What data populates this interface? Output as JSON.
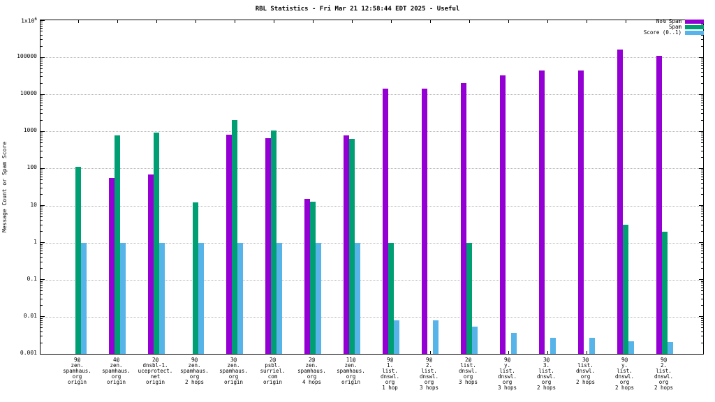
{
  "chart_data": {
    "type": "bar",
    "title": "RBL Statistics - Fri Mar 21 12:58:44 EDT 2025 - Useful",
    "ylabel": "Message Count or Spam Score",
    "xlabel": "",
    "y_scale": "log",
    "ylim": [
      0.001,
      1000000
    ],
    "y_tick_labels": [
      "1x10^6",
      "100000",
      "10000",
      "1000",
      "100",
      "10",
      "1",
      "0.1",
      "0.01",
      "0.001"
    ],
    "grid": true,
    "legend_position": "top-right",
    "categories": [
      [
        "9@",
        "zen.",
        "spamhaus.",
        "org",
        "origin"
      ],
      [
        "4@",
        "zen.",
        "spamhaus.",
        "org",
        "origin"
      ],
      [
        "2@",
        "dnsbl-1.",
        "uceprotect.",
        "net",
        "origin"
      ],
      [
        "9@",
        "zen.",
        "spamhaus.",
        "org",
        "2 hops"
      ],
      [
        "3@",
        "zen.",
        "spamhaus.",
        "org",
        "origin"
      ],
      [
        "2@",
        "psbl.",
        "surriel.",
        "com",
        "origin"
      ],
      [
        "2@",
        "zen.",
        "spamhaus.",
        "org",
        "4 hops"
      ],
      [
        "11@",
        "zen.",
        "spamhaus.",
        "org",
        "origin"
      ],
      [
        "9@",
        "1.",
        "list.",
        "dnswl.",
        "org",
        "1 hop"
      ],
      [
        "9@",
        "2.",
        "list.",
        "dnswl.",
        "org",
        "3 hops"
      ],
      [
        "2@",
        "list.",
        "dnswl.",
        "org",
        "3 hops"
      ],
      [
        "9@",
        "y.",
        "list.",
        "dnswl.",
        "org",
        "3 hops"
      ],
      [
        "3@",
        "3.",
        "list.",
        "dnswl.",
        "org",
        "2 hops"
      ],
      [
        "3@",
        "list.",
        "dnswl.",
        "org",
        "2 hops"
      ],
      [
        "9@",
        "y.",
        "list.",
        "dnswl.",
        "org",
        "2 hops"
      ],
      [
        "9@",
        "2.",
        "list.",
        "dnswl.",
        "org",
        "2 hops"
      ]
    ],
    "series": [
      {
        "name": "Not Spam",
        "color": "#9400d3",
        "values": [
          null,
          55,
          70,
          null,
          800,
          650,
          15,
          780,
          14000,
          14000,
          20000,
          33000,
          45000,
          44000,
          160000,
          110000
        ]
      },
      {
        "name": "Spam",
        "color": "#009e73",
        "values": [
          110,
          780,
          950,
          12,
          2000,
          1050,
          13,
          640,
          1,
          null,
          1,
          null,
          null,
          null,
          3,
          2
        ]
      },
      {
        "name": "Score (0..1)",
        "color": "#56b4e9",
        "values": [
          1,
          1,
          1,
          1,
          1,
          1,
          1,
          1,
          0.008,
          0.008,
          0.0055,
          0.0037,
          0.0027,
          0.0027,
          0.0022,
          0.0021
        ]
      }
    ]
  }
}
